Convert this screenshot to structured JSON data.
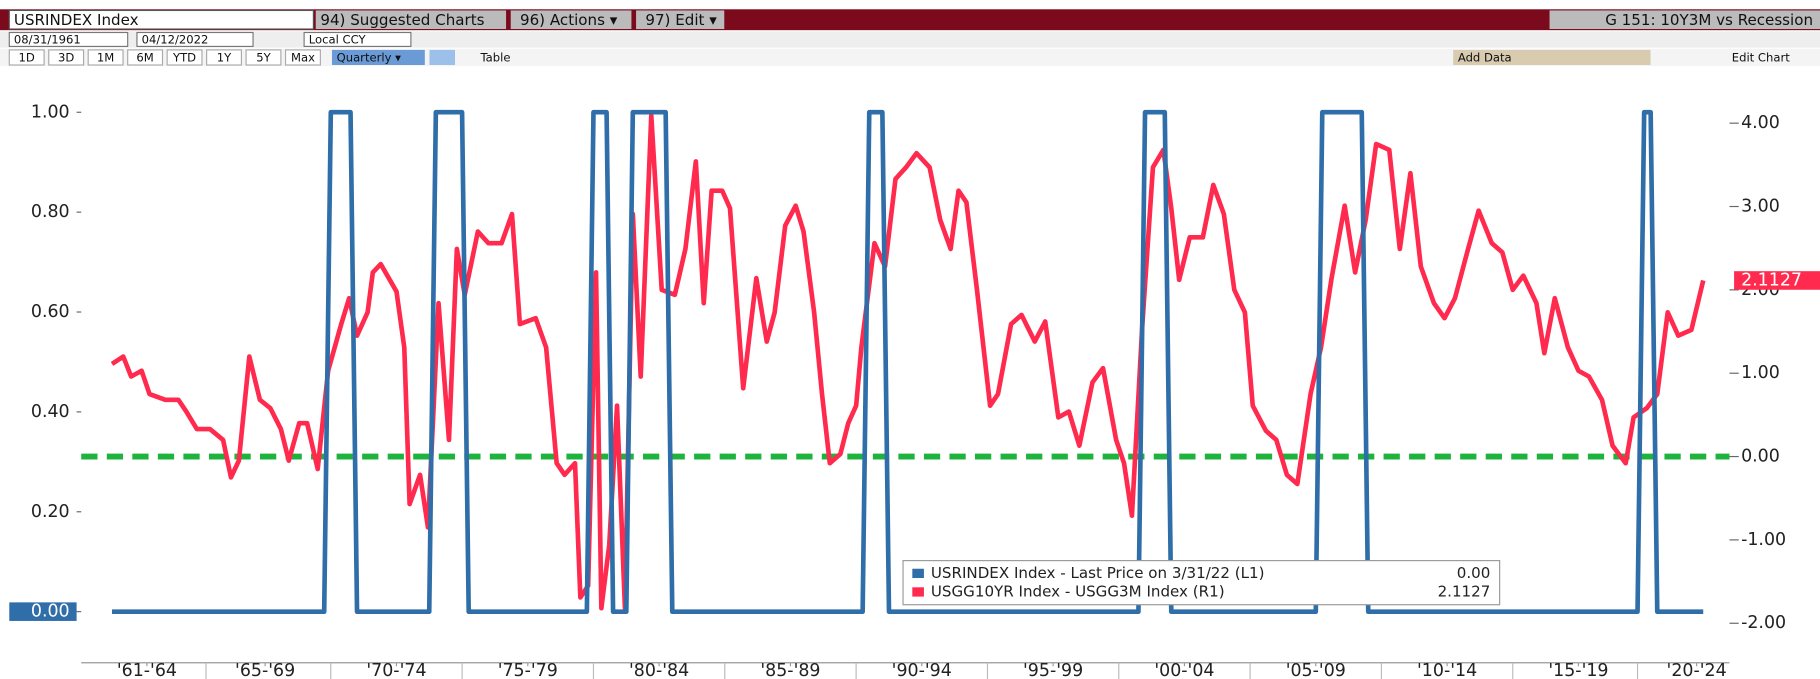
{
  "toolbar": {
    "security": "USRINDEX Index",
    "buttons": [
      "94) Suggested Charts",
      "96) Actions ▾",
      "97) Edit ▾"
    ],
    "chart_name": "G 151: 10Y3M vs Recession",
    "start_date": "08/31/1961",
    "end_date": "04/12/2022",
    "currency": "Local CCY",
    "ranges": [
      "1D",
      "3D",
      "1M",
      "6M",
      "YTD",
      "1Y",
      "5Y",
      "Max"
    ],
    "frequency": "Quarterly ▾",
    "table": "Table",
    "add_data": "Add Data",
    "edit_chart": "Edit Chart"
  },
  "chart_data": {
    "type": "line",
    "xlim": [
      1960.5,
      2023.25
    ],
    "xticks": [
      {
        "value": 1963,
        "label": "'61-'64"
      },
      {
        "value": 1967.5,
        "label": "'65-'69"
      },
      {
        "value": 1972.5,
        "label": "'70-'74"
      },
      {
        "value": 1977.5,
        "label": "'75-'79"
      },
      {
        "value": 1982.5,
        "label": "'80-'84"
      },
      {
        "value": 1987.5,
        "label": "'85-'89"
      },
      {
        "value": 1992.5,
        "label": "'90-'94"
      },
      {
        "value": 1997.5,
        "label": "'95-'99"
      },
      {
        "value": 2002.5,
        "label": "'00-'04"
      },
      {
        "value": 2007.5,
        "label": "'05-'09"
      },
      {
        "value": 2012.5,
        "label": "'10-'14"
      },
      {
        "value": 2017.5,
        "label": "'15-'19"
      },
      {
        "value": 2022,
        "label": "'20-'24"
      }
    ],
    "ylim": [
      -0.1,
      1.09
    ],
    "yticks": [
      {
        "value": 0,
        "label": "0.00"
      },
      {
        "value": 0.2,
        "label": "0.20"
      },
      {
        "value": 0.4,
        "label": "0.40"
      },
      {
        "value": 0.6,
        "label": "0.60"
      },
      {
        "value": 0.8,
        "label": "0.80"
      },
      {
        "value": 1,
        "label": "1.00"
      }
    ],
    "y2lim": [
      -2.46,
      4.67
    ],
    "y2ticks": [
      {
        "value": -2,
        "label": "-2.00"
      },
      {
        "value": -1,
        "label": "-1.00"
      },
      {
        "value": 0,
        "label": "0.00"
      },
      {
        "value": 1,
        "label": "1.00"
      },
      {
        "value": 2,
        "label": "2.00"
      },
      {
        "value": 3,
        "label": "3.00"
      },
      {
        "value": 4,
        "label": "4.00"
      }
    ],
    "reference_line": {
      "value": 0,
      "axis": "y2",
      "color": "#1db33c"
    },
    "last_labels": [
      "0.00",
      "2.1127"
    ],
    "series": [
      {
        "name": "USRINDEX Index - Last Price on 3/31/22 (L1)",
        "color": "#2f6ea8",
        "axis": "y",
        "x": [
          1961.67,
          1969.75,
          1970.0,
          1970.75,
          1971.0,
          1973.75,
          1974.0,
          1975.0,
          1975.25,
          1979.75,
          1980.0,
          1980.5,
          1980.75,
          1981.25,
          1981.5,
          1982.75,
          1983.0,
          1990.25,
          1990.5,
          1991.0,
          1991.25,
          2000.75,
          2001.0,
          2001.75,
          2002.0,
          2007.5,
          2007.75,
          2009.25,
          2009.5,
          2019.75,
          2020.0,
          2020.25,
          2020.5,
          2022.25
        ],
        "values": [
          0,
          0,
          1,
          1,
          0,
          0,
          1,
          1,
          0,
          0,
          1,
          1,
          0,
          0,
          1,
          1,
          0,
          0,
          1,
          1,
          0,
          0,
          1,
          1,
          0,
          0,
          1,
          1,
          0,
          0,
          1,
          1,
          0,
          0
        ]
      },
      {
        "name": "USGG10YR Index - USGG3M Index (R1)",
        "color": "#ff2a4d",
        "axis": "y2",
        "x": [
          1961.67,
          1962.1,
          1962.4,
          1962.8,
          1963.1,
          1963.7,
          1964.2,
          1964.5,
          1964.9,
          1965.4,
          1965.9,
          1966.2,
          1966.5,
          1966.9,
          1967.3,
          1967.7,
          1968.1,
          1968.4,
          1968.8,
          1969.1,
          1969.5,
          1969.9,
          1970.4,
          1970.7,
          1971.0,
          1971.4,
          1971.6,
          1971.9,
          1972.5,
          1972.8,
          1973.0,
          1973.4,
          1973.7,
          1974.1,
          1974.5,
          1974.8,
          1975.1,
          1975.6,
          1976.0,
          1976.5,
          1976.9,
          1977.2,
          1977.8,
          1978.2,
          1978.6,
          1978.9,
          1979.3,
          1979.5,
          1979.8,
          1980.1,
          1980.3,
          1980.6,
          1980.9,
          1981.2,
          1981.5,
          1981.8,
          1982.2,
          1982.6,
          1983.1,
          1983.5,
          1983.9,
          1984.2,
          1984.5,
          1984.9,
          1985.2,
          1985.7,
          1986.2,
          1986.6,
          1986.9,
          1987.3,
          1987.7,
          1988.0,
          1988.4,
          1988.7,
          1989.0,
          1989.4,
          1989.7,
          1990.0,
          1990.2,
          1990.7,
          1991.1,
          1991.5,
          1991.9,
          1992.3,
          1992.8,
          1993.2,
          1993.6,
          1993.9,
          1994.2,
          1994.6,
          1995.1,
          1995.4,
          1995.9,
          1996.3,
          1996.8,
          1997.2,
          1997.7,
          1998.1,
          1998.5,
          1999.0,
          1999.4,
          1999.9,
          2000.2,
          2000.5,
          2000.9,
          2001.3,
          2001.7,
          2002.0,
          2002.3,
          2002.7,
          2003.2,
          2003.6,
          2004.0,
          2004.4,
          2004.8,
          2005.1,
          2005.6,
          2006.0,
          2006.4,
          2006.8,
          2007.3,
          2007.7,
          2008.1,
          2008.6,
          2009.0,
          2009.4,
          2009.8,
          2010.3,
          2010.7,
          2011.1,
          2011.5,
          2012.0,
          2012.4,
          2012.8,
          2013.3,
          2013.7,
          2014.2,
          2014.6,
          2015.0,
          2015.4,
          2015.9,
          2016.2,
          2016.6,
          2017.1,
          2017.5,
          2017.9,
          2018.4,
          2018.8,
          2019.3,
          2019.6,
          2020.1,
          2020.5,
          2020.9,
          2021.3,
          2021.8,
          2022.25
        ],
        "values": [
          1.11,
          1.2,
          0.96,
          1.03,
          0.75,
          0.68,
          0.68,
          0.54,
          0.33,
          0.33,
          0.2,
          -0.25,
          -0.05,
          1.2,
          0.68,
          0.58,
          0.33,
          -0.05,
          0.4,
          0.4,
          -0.15,
          1.03,
          1.59,
          1.9,
          1.45,
          1.73,
          2.21,
          2.31,
          1.98,
          1.31,
          -0.57,
          -0.22,
          -0.85,
          1.84,
          0.2,
          2.49,
          1.94,
          2.7,
          2.56,
          2.56,
          2.91,
          1.59,
          1.66,
          1.31,
          -0.08,
          -0.22,
          -0.08,
          -1.69,
          -1.55,
          2.21,
          -1.82,
          -1.06,
          0.61,
          -1.82,
          2.91,
          0.96,
          4.09,
          2.0,
          1.94,
          2.49,
          3.54,
          1.84,
          3.19,
          3.19,
          2.98,
          0.82,
          2.14,
          1.38,
          1.73,
          2.77,
          3.01,
          2.7,
          1.73,
          0.75,
          -0.08,
          0.03,
          0.4,
          0.61,
          1.31,
          2.56,
          2.28,
          3.33,
          3.47,
          3.64,
          3.47,
          2.84,
          2.49,
          3.19,
          3.05,
          2.0,
          0.61,
          0.75,
          1.59,
          1.7,
          1.38,
          1.62,
          0.47,
          0.54,
          0.13,
          0.89,
          1.06,
          0.2,
          -0.08,
          -0.71,
          1.59,
          3.47,
          3.68,
          2.98,
          2.12,
          2.63,
          2.63,
          3.26,
          2.91,
          2.0,
          1.73,
          0.61,
          0.31,
          0.2,
          -0.22,
          -0.33,
          0.75,
          1.31,
          2.14,
          3.01,
          2.21,
          2.84,
          3.75,
          3.68,
          2.49,
          3.4,
          2.28,
          1.84,
          1.66,
          1.9,
          2.49,
          2.95,
          2.56,
          2.45,
          2.0,
          2.17,
          1.84,
          1.24,
          1.9,
          1.31,
          1.03,
          0.96,
          0.68,
          0.13,
          -0.08,
          0.47,
          0.58,
          0.75,
          1.73,
          1.45,
          1.52,
          2.1127
        ]
      }
    ]
  }
}
